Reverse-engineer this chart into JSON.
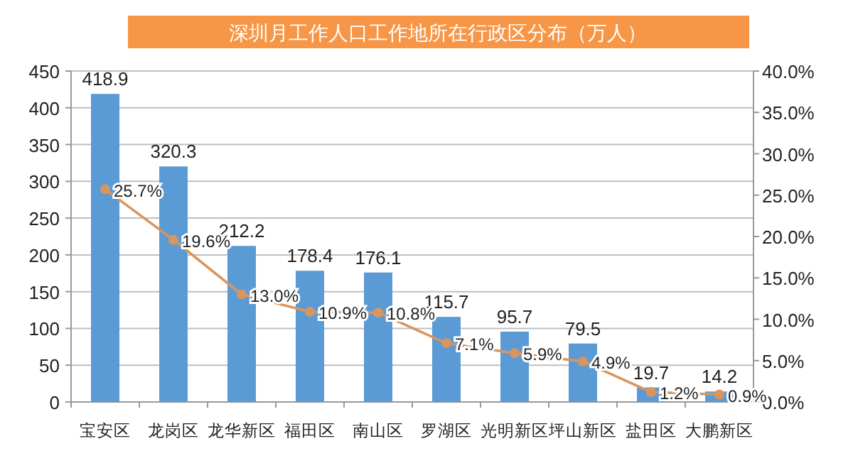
{
  "chart_data": {
    "type": "bar",
    "title": "深圳月工作人口工作地所在行政区分布（万人）",
    "categories": [
      "宝安区",
      "龙岗区",
      "龙华新区",
      "福田区",
      "南山区",
      "罗湖区",
      "光明新区",
      "坪山新区",
      "盐田区",
      "大鹏新区"
    ],
    "series": [
      {
        "color": "#5b9bd5",
        "values": [
          418.9,
          320.3,
          212.2,
          178.4,
          176.1,
          115.7,
          95.7,
          79.5,
          19.7,
          14.2
        ],
        "value_labels": [
          "418.9",
          "320.3",
          "212.2",
          "178.4",
          "176.1",
          "115.7",
          "95.7",
          "79.5",
          "19.7",
          "14.2"
        ]
      },
      {
        "type": "line",
        "axis": "y2",
        "color": "#d9955f",
        "marker": "circle",
        "values": [
          25.7,
          19.6,
          13.0,
          10.9,
          10.8,
          7.1,
          5.9,
          4.9,
          1.2,
          0.9
        ],
        "value_labels": [
          "25.7%",
          "19.6%",
          "13.0%",
          "10.9%",
          "10.8%",
          "7.1%",
          "5.9%",
          "4.9%",
          "1.2%",
          "0.9%"
        ]
      }
    ],
    "ylim": [
      0,
      450
    ],
    "yticks": [
      0,
      50,
      100,
      150,
      200,
      250,
      300,
      350,
      400,
      450
    ],
    "y2lim": [
      0,
      40
    ],
    "y2ticks": [
      {
        "value": 0,
        "label": "0.0%"
      },
      {
        "value": 5,
        "label": "5.0%"
      },
      {
        "value": 10,
        "label": "10.0%"
      },
      {
        "value": 15,
        "label": "15.0%"
      },
      {
        "value": 20,
        "label": "20.0%"
      },
      {
        "value": 25,
        "label": "25.0%"
      },
      {
        "value": 30,
        "label": "30.0%"
      },
      {
        "value": 35,
        "label": "35.0%"
      },
      {
        "value": 40,
        "label": "40.0%"
      }
    ],
    "grid": "y"
  }
}
